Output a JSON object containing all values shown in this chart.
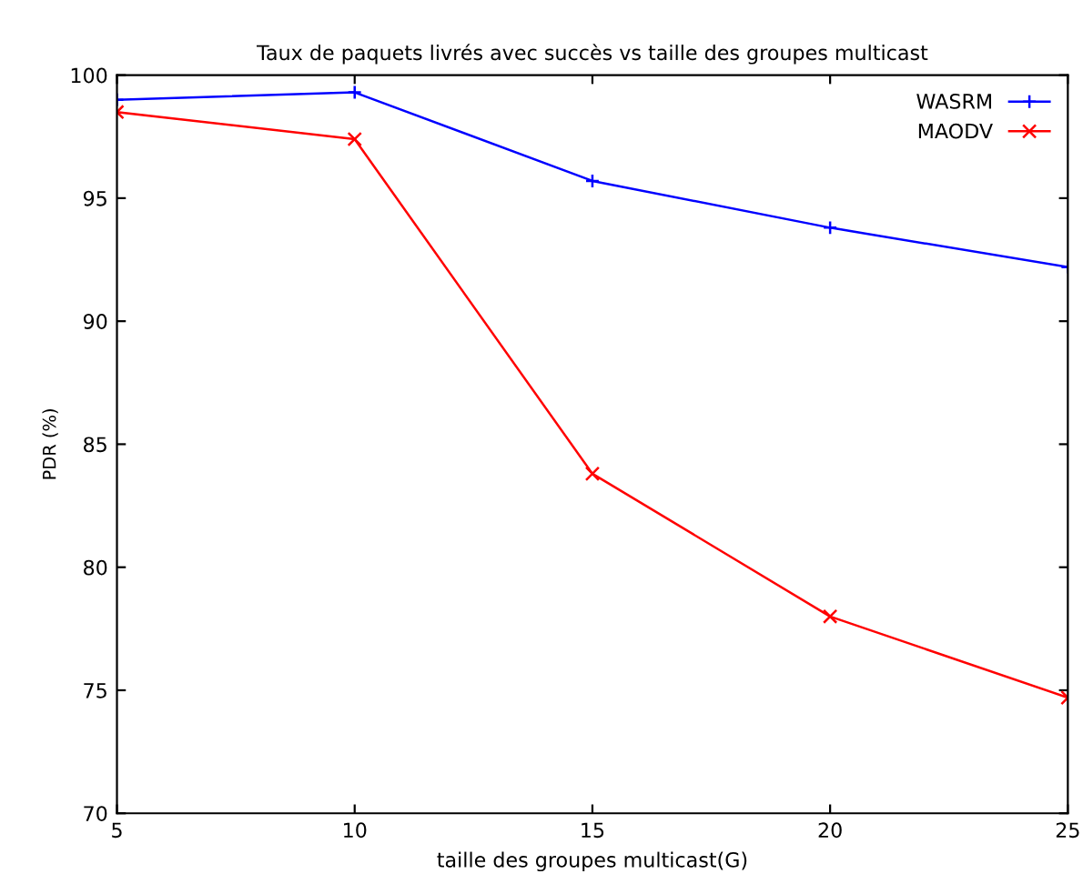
{
  "chart_data": {
    "type": "line",
    "title": "Taux de paquets livrés avec succès vs taille des groupes multicast",
    "xlabel": "taille des groupes multicast(G)",
    "ylabel": "PDR (%)",
    "x": [
      5,
      10,
      15,
      20,
      25
    ],
    "series": [
      {
        "name": "WASRM",
        "color": "#0000ff",
        "marker": "plus",
        "values": [
          99.0,
          99.3,
          95.7,
          93.8,
          92.2
        ]
      },
      {
        "name": "MAODV",
        "color": "#ff0000",
        "marker": "cross",
        "values": [
          98.5,
          97.4,
          83.8,
          78.0,
          74.7
        ]
      }
    ],
    "xlim": [
      5,
      25
    ],
    "xticks": [
      5,
      10,
      15,
      20,
      25
    ],
    "ylim": [
      70,
      100
    ],
    "yticks": [
      70,
      75,
      80,
      85,
      90,
      95,
      100
    ],
    "grid": false,
    "legend": "top right",
    "line_style": "solid"
  }
}
